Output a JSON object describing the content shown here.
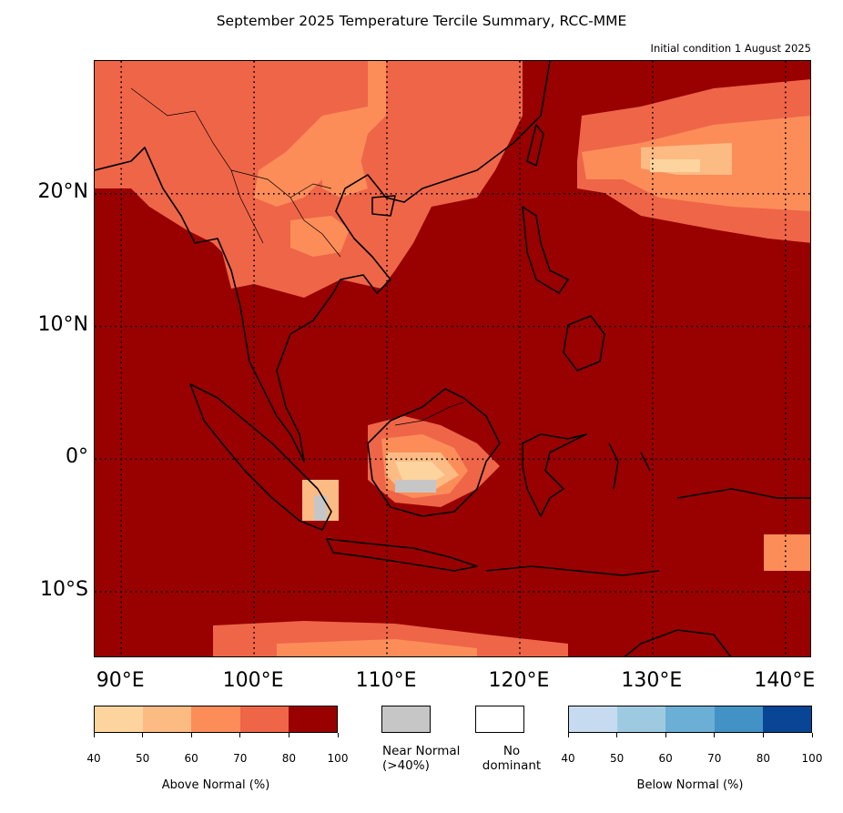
{
  "title": "September 2025 Temperature Tercile Summary, RCC-MME",
  "subtitle": "Initial condition 1 August 2025",
  "map": {
    "lon_range": [
      88,
      142
    ],
    "lat_range": [
      -15,
      30
    ],
    "lat_ticks": [
      {
        "value": 20,
        "label": "20°N"
      },
      {
        "value": 10,
        "label": "10°N"
      },
      {
        "value": 0,
        "label": "0°"
      },
      {
        "value": -10,
        "label": "10°S"
      }
    ],
    "lon_ticks": [
      {
        "value": 90,
        "label": "90°E"
      },
      {
        "value": 100,
        "label": "100°E"
      },
      {
        "value": 110,
        "label": "110°E"
      },
      {
        "value": 120,
        "label": "120°E"
      },
      {
        "value": 130,
        "label": "130°E"
      },
      {
        "value": 140,
        "label": "140°E"
      }
    ],
    "gridlines": "dotted",
    "dominant_category": "Above Normal >80%"
  },
  "legend": {
    "above": {
      "title": "Above Normal (%)",
      "ticks": [
        "40",
        "50",
        "60",
        "70",
        "80",
        "100"
      ],
      "colors": [
        "#fdd49e",
        "#fdbb84",
        "#fc8d59",
        "#ef6548",
        "#990000"
      ]
    },
    "near": {
      "label_line1": "Near Normal",
      "label_line2": "(>40%)",
      "color": "#c6c6c6"
    },
    "none": {
      "label_line1": "No",
      "label_line2": "dominant",
      "color": "#ffffff"
    },
    "below": {
      "title": "Below Normal (%)",
      "ticks": [
        "40",
        "50",
        "60",
        "70",
        "80",
        "100"
      ],
      "colors": [
        "#c6dbef",
        "#9ecae1",
        "#6baed6",
        "#4292c6",
        "#084594"
      ]
    }
  }
}
